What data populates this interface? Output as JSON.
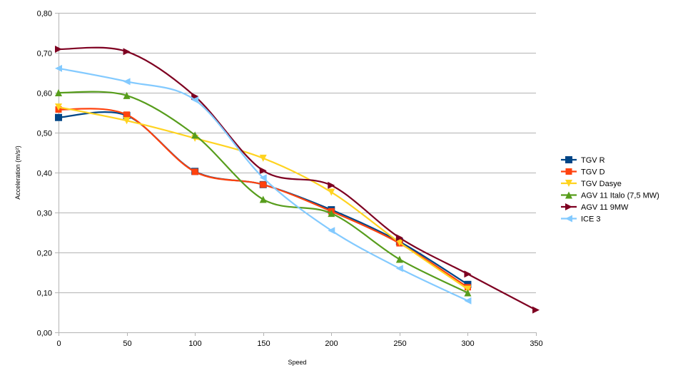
{
  "chart_data": {
    "type": "line",
    "xlabel": "Speed",
    "ylabel": "Acceleration (m/s²)",
    "xlim": [
      0,
      350
    ],
    "ylim": [
      0,
      0.8
    ],
    "x_ticks": [
      0,
      50,
      100,
      150,
      200,
      250,
      300,
      350
    ],
    "y_ticks": [
      0,
      0.1,
      0.2,
      0.3,
      0.4,
      0.5,
      0.6,
      0.7,
      0.8
    ],
    "x_tick_labels": [
      "0",
      "50",
      "100",
      "150",
      "200",
      "250",
      "300",
      "350"
    ],
    "y_tick_labels": [
      "0,00",
      "0,10",
      "0,20",
      "0,30",
      "0,40",
      "0,50",
      "0,60",
      "0,70",
      "0,80"
    ],
    "grid": "horizontal",
    "legend_position": "right",
    "smoothed": true,
    "series": [
      {
        "name": "TGV R",
        "color": "#004586",
        "marker": "square",
        "x": [
          0,
          50,
          100,
          150,
          200,
          250,
          300
        ],
        "y": [
          0.538,
          0.543,
          0.403,
          0.37,
          0.307,
          0.227,
          0.12
        ]
      },
      {
        "name": "TGV D",
        "color": "#ff420e",
        "marker": "diamond",
        "x": [
          0,
          50,
          100,
          150,
          200,
          250,
          300
        ],
        "y": [
          0.558,
          0.545,
          0.402,
          0.37,
          0.303,
          0.223,
          0.113
        ]
      },
      {
        "name": "TGV Dasye",
        "color": "#ffd320",
        "marker": "triangle-down",
        "x": [
          0,
          50,
          100,
          150,
          200,
          250,
          300
        ],
        "y": [
          0.564,
          0.53,
          0.486,
          0.436,
          0.351,
          0.225,
          0.108
        ]
      },
      {
        "name": "AGV 11 Italo (7,5 MW)",
        "color": "#579d1c",
        "marker": "triangle-up",
        "x": [
          0,
          50,
          100,
          150,
          200,
          250,
          300
        ],
        "y": [
          0.6,
          0.593,
          0.494,
          0.333,
          0.298,
          0.183,
          0.099
        ]
      },
      {
        "name": "AGV 11 9MW",
        "color": "#7e0021",
        "marker": "triangle-right",
        "x": [
          0,
          50,
          100,
          150,
          200,
          250,
          300,
          350
        ],
        "y": [
          0.709,
          0.703,
          0.591,
          0.405,
          0.368,
          0.237,
          0.146,
          0.056
        ]
      },
      {
        "name": "ICE 3",
        "color": "#83caff",
        "marker": "triangle-left",
        "x": [
          0,
          50,
          100,
          150,
          200,
          250,
          300
        ],
        "y": [
          0.661,
          0.628,
          0.582,
          0.387,
          0.255,
          0.16,
          0.079
        ]
      }
    ]
  }
}
